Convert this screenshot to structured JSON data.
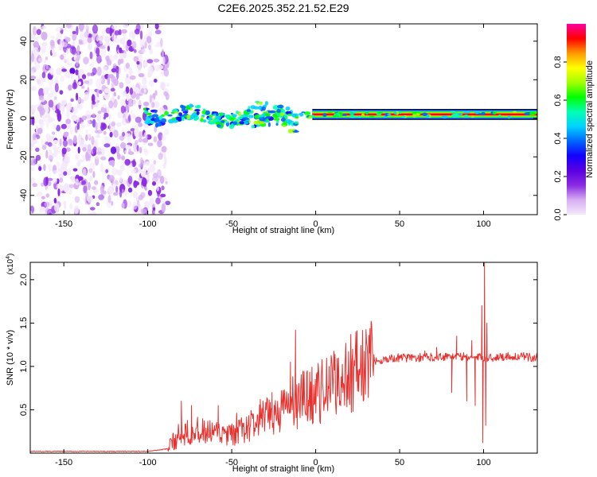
{
  "title": "C2E6.2025.352.21.52.E29",
  "chart_data": [
    {
      "type": "heatmap",
      "name": "spectrogram",
      "xlabel": "Height of straight line (km)",
      "ylabel": "Frequency (Hz)",
      "xlim": [
        -170,
        132
      ],
      "ylim": [
        -50,
        49
      ],
      "xticks": [
        -150,
        -100,
        -50,
        0,
        50,
        100
      ],
      "xtick_labels": [
        "-150",
        "-100",
        "-50",
        "0",
        "50",
        "100"
      ],
      "yticks": [
        -40,
        -20,
        0,
        20,
        40
      ],
      "ytick_labels": [
        "-40",
        "-20",
        "0",
        "20",
        "40"
      ],
      "colorbar": {
        "label": "Normalized spectral amplitude",
        "range": [
          0,
          1
        ],
        "ticks": [
          0.0,
          0.2,
          0.4,
          0.6,
          0.8
        ],
        "tick_labels": [
          "0.0",
          "0.2",
          "0.4",
          "0.6",
          "0.8"
        ],
        "colors": [
          "#f4e9fb",
          "#d7aef2",
          "#8a2be2",
          "#5a00e0",
          "#1400ff",
          "#0066ff",
          "#00d2ff",
          "#00ffb4",
          "#00ff00",
          "#a0ff00",
          "#ffff00",
          "#ff9900",
          "#ff0000",
          "#ff00a0"
        ]
      },
      "regions": {
        "noise_x": [
          -170,
          -100
        ],
        "fading_noise_x": [
          -100,
          -88
        ],
        "signal_start_x": -102,
        "band_center_hz": 2,
        "band_halfwidth_hz": 2.6
      }
    },
    {
      "type": "line",
      "name": "snr",
      "xlabel": "Height of straight line (km)",
      "ylabel": "SNR (10 * v/v)",
      "y_multiplier": "(x10^4)",
      "y_multiplier_base": "(x10",
      "y_multiplier_exp": "4",
      "y_multiplier_close": ")",
      "color": "#e8312e",
      "xlim": [
        -170,
        132
      ],
      "ylim": [
        0.0,
        2.2
      ],
      "xticks": [
        -150,
        -100,
        -50,
        0,
        50,
        100
      ],
      "xtick_labels": [
        "-150",
        "-100",
        "-50",
        "0",
        "50",
        "100"
      ],
      "yticks": [
        0.5,
        1.0,
        1.5,
        2.0
      ],
      "ytick_labels": [
        "0.5",
        "1.0",
        "1.5",
        "2.0"
      ],
      "units": "x10^4",
      "envelope": {
        "x": [
          -170,
          -100,
          -88,
          -82,
          -76,
          -70,
          -60,
          -50,
          -40,
          -30,
          -20,
          -12,
          -5,
          5,
          15,
          25,
          35,
          40,
          50,
          60,
          70,
          80,
          90,
          95,
          100,
          105,
          115,
          132
        ],
        "y": [
          0.02,
          0.02,
          0.05,
          0.2,
          0.28,
          0.25,
          0.22,
          0.2,
          0.3,
          0.4,
          0.5,
          0.6,
          0.65,
          0.72,
          0.85,
          0.98,
          1.06,
          1.08,
          1.1,
          1.1,
          1.11,
          1.12,
          1.11,
          1.1,
          1.1,
          1.1,
          1.12,
          1.1
        ]
      },
      "spikes": [
        {
          "x": -80,
          "y": 0.6
        },
        {
          "x": -74,
          "y": 0.55
        },
        {
          "x": -58,
          "y": 0.55
        },
        {
          "x": -47,
          "y": 0.46
        },
        {
          "x": -33,
          "y": 0.62
        },
        {
          "x": -26,
          "y": 0.7
        },
        {
          "x": -15,
          "y": 1.05
        },
        {
          "x": -12,
          "y": 1.42
        },
        {
          "x": -11,
          "y": 0.28
        },
        {
          "x": -5,
          "y": 0.95
        },
        {
          "x": 8,
          "y": 1.0
        },
        {
          "x": 22,
          "y": 1.2
        },
        {
          "x": 65,
          "y": 1.18
        },
        {
          "x": 72,
          "y": 1.22
        },
        {
          "x": 81,
          "y": 0.7
        },
        {
          "x": 84,
          "y": 1.35
        },
        {
          "x": 90,
          "y": 0.6
        },
        {
          "x": 93,
          "y": 1.3
        },
        {
          "x": 95,
          "y": 0.55
        },
        {
          "x": 99,
          "y": 1.7
        },
        {
          "x": 99.5,
          "y": 0.12
        },
        {
          "x": 100.5,
          "y": 2.2
        },
        {
          "x": 101.3,
          "y": 0.32
        },
        {
          "x": 102,
          "y": 1.5
        }
      ]
    }
  ]
}
